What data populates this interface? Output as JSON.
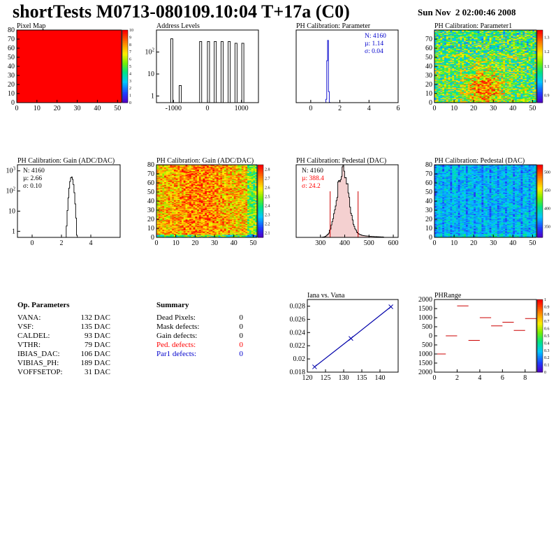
{
  "header": {
    "title": "shortTests M0713-080109.10:04 T+17a (C0)",
    "date": "Sun Nov  2 02:00:46 2008"
  },
  "op_params": {
    "title": "Op. Parameters",
    "rows": [
      {
        "name": "VANA:",
        "value": "132 DAC"
      },
      {
        "name": "VSF:",
        "value": "135 DAC"
      },
      {
        "name": "CALDEL:",
        "value": "93 DAC"
      },
      {
        "name": "VTHR:",
        "value": "79 DAC"
      },
      {
        "name": "IBIAS_DAC:",
        "value": "106 DAC"
      },
      {
        "name": "VIBIAS_PH:",
        "value": "189 DAC"
      },
      {
        "name": "VOFFSETOP:",
        "value": "31 DAC"
      }
    ]
  },
  "summary": {
    "title": "Summary",
    "rows": [
      {
        "name": "Dead Pixels:",
        "value": "0",
        "color": "#000000"
      },
      {
        "name": "Mask defects:",
        "value": "0",
        "color": "#000000"
      },
      {
        "name": "Gain defects:",
        "value": "0",
        "color": "#000000"
      },
      {
        "name": "Ped. defects:",
        "value": "0",
        "color": "#ff0000"
      },
      {
        "name": "Par1 defects:",
        "value": "0",
        "color": "#0000cc"
      }
    ]
  },
  "chart_data": [
    {
      "id": "pixel-map",
      "type": "heatmap",
      "title": "Pixel Map",
      "xlim": [
        0,
        52
      ],
      "ylim": [
        0,
        80
      ],
      "xticks": [
        "0",
        "10",
        "20",
        "30",
        "40",
        "50"
      ],
      "yticks": [
        "0",
        "10",
        "20",
        "30",
        "40",
        "50",
        "60",
        "70",
        "80"
      ],
      "palette_values": [
        "0",
        "1",
        "2",
        "3",
        "4",
        "5",
        "6",
        "7",
        "8",
        "9",
        "10"
      ],
      "cell_value": 10,
      "fill_color": "#ff0000"
    },
    {
      "id": "address-levels",
      "type": "bar",
      "title": "Address Levels",
      "yscale": "log",
      "xlim": [
        -1500,
        1500
      ],
      "ylim": [
        0.5,
        1000
      ],
      "xticks": [
        "-1000",
        "0",
        "1000"
      ],
      "yticks": [
        "1",
        "10",
        "10^2"
      ],
      "peaks": [
        {
          "x": -1050,
          "y": 400
        },
        {
          "x": -800,
          "y": 3
        },
        {
          "x": -200,
          "y": 300
        },
        {
          "x": 30,
          "y": 300
        },
        {
          "x": 230,
          "y": 300
        },
        {
          "x": 430,
          "y": 300
        },
        {
          "x": 640,
          "y": 300
        },
        {
          "x": 840,
          "y": 250
        },
        {
          "x": 1040,
          "y": 250
        }
      ]
    },
    {
      "id": "ph-cal-parameter",
      "type": "bar",
      "title": "PH Calibration: Parameter",
      "xlim": [
        -1,
        6
      ],
      "ylim": [
        0,
        1050
      ],
      "xticks": [
        "0",
        "2",
        "4",
        "6"
      ],
      "stats": {
        "N": "N: 4160",
        "mean": "µ: 1.14",
        "sigma": "σ: 0.04"
      },
      "stat_color": "#0000cc",
      "gauss": {
        "mean": 1.14,
        "sigma": 0.04,
        "peak": 1000
      }
    },
    {
      "id": "ph-cal-parameter1",
      "type": "heatmap",
      "title": "PH Calibration: Parameter1",
      "xlim": [
        0,
        52
      ],
      "ylim": [
        0,
        80
      ],
      "xticks": [
        "0",
        "10",
        "20",
        "30",
        "40",
        "50"
      ],
      "yticks": [
        "0",
        "10",
        "20",
        "30",
        "40",
        "50",
        "60",
        "70"
      ],
      "palette_values": [
        "0.9",
        "1",
        "1.1",
        "1.2",
        "1.3"
      ],
      "zlim": [
        0.85,
        1.35
      ]
    },
    {
      "id": "gain-hist",
      "type": "bar",
      "title": "PH Calibration: Gain (ADC/DAC)",
      "yscale": "log",
      "xlim": [
        -1,
        6
      ],
      "ylim": [
        0.5,
        2000
      ],
      "xticks": [
        "0",
        "2",
        "4"
      ],
      "yticks": [
        "1",
        "10",
        "10^2",
        "10^3"
      ],
      "stats": {
        "N": "N: 4160",
        "mean": "µ: 2.66",
        "sigma": "σ: 0.10"
      },
      "stat_color": "#000000",
      "gauss": {
        "mean": 2.66,
        "sigma": 0.1,
        "peak": 500
      }
    },
    {
      "id": "gain-map",
      "type": "heatmap",
      "title": "PH Calibration: Gain (ADC/DAC)",
      "xlim": [
        0,
        52
      ],
      "ylim": [
        0,
        80
      ],
      "xticks": [
        "0",
        "10",
        "20",
        "30",
        "40",
        "50"
      ],
      "yticks": [
        "0",
        "10",
        "20",
        "30",
        "40",
        "50",
        "60",
        "70",
        "80"
      ],
      "palette_values": [
        "2.1",
        "2.2",
        "2.3",
        "2.4",
        "2.5",
        "2.6",
        "2.7",
        "2.8"
      ],
      "zlim": [
        2.05,
        2.85
      ]
    },
    {
      "id": "pedestal-hist",
      "type": "bar",
      "title": "PH Calibration: Pedestal (DAC)",
      "xlim": [
        200,
        620
      ],
      "ylim": [
        0,
        100
      ],
      "xticks": [
        "300",
        "400",
        "500",
        "600"
      ],
      "stats": {
        "N": "N: 4160",
        "mean": "µ: 388.4",
        "sigma": "σ: 24.2"
      },
      "stat_color": "#ff0000",
      "gauss": {
        "mean": 388.4,
        "sigma": 24.2,
        "peak": 90
      },
      "cut_lines": [
        340,
        455
      ]
    },
    {
      "id": "pedestal-map",
      "type": "heatmap",
      "title": "PH Calibration: Pedestal (DAC)",
      "xlim": [
        0,
        52
      ],
      "ylim": [
        0,
        80
      ],
      "xticks": [
        "0",
        "10",
        "20",
        "30",
        "40",
        "50"
      ],
      "yticks": [
        "0",
        "10",
        "20",
        "30",
        "40",
        "50",
        "60",
        "70",
        "80"
      ],
      "palette_values": [
        "350",
        "400",
        "450",
        "500"
      ],
      "zlim": [
        320,
        520
      ]
    },
    {
      "id": "iana-vs-vana",
      "type": "line",
      "title": "Iana vs. Vana",
      "xlim": [
        120,
        145
      ],
      "ylim": [
        0.018,
        0.029
      ],
      "xticks": [
        "120",
        "125",
        "130",
        "135",
        "140"
      ],
      "yticks": [
        "0.018",
        "0.02",
        "0.022",
        "0.024",
        "0.026",
        "0.028"
      ],
      "x": [
        122,
        132,
        143
      ],
      "y": [
        0.0188,
        0.0231,
        0.0279
      ]
    },
    {
      "id": "phrange",
      "type": "scatter",
      "title": "PHRange",
      "xlim": [
        0,
        9
      ],
      "ylim": [
        -2000,
        2000
      ],
      "xticks": [
        "0",
        "2",
        "4",
        "6",
        "8"
      ],
      "yticks": [
        "2000",
        "1500",
        "1000",
        "500",
        "0",
        "500",
        "1000",
        "1500",
        "2000"
      ],
      "palette_values": [
        "0",
        "0.1",
        "0.2",
        "0.3",
        "0.4",
        "0.5",
        "0.6",
        "0.7",
        "0.8",
        "0.9",
        "1"
      ],
      "x": [
        0.5,
        1.5,
        2.5,
        3.5,
        4.5,
        5.5,
        6.5,
        7.5,
        8.5
      ],
      "y": [
        -1000,
        0,
        1650,
        -250,
        1000,
        550,
        750,
        300,
        950
      ]
    }
  ]
}
